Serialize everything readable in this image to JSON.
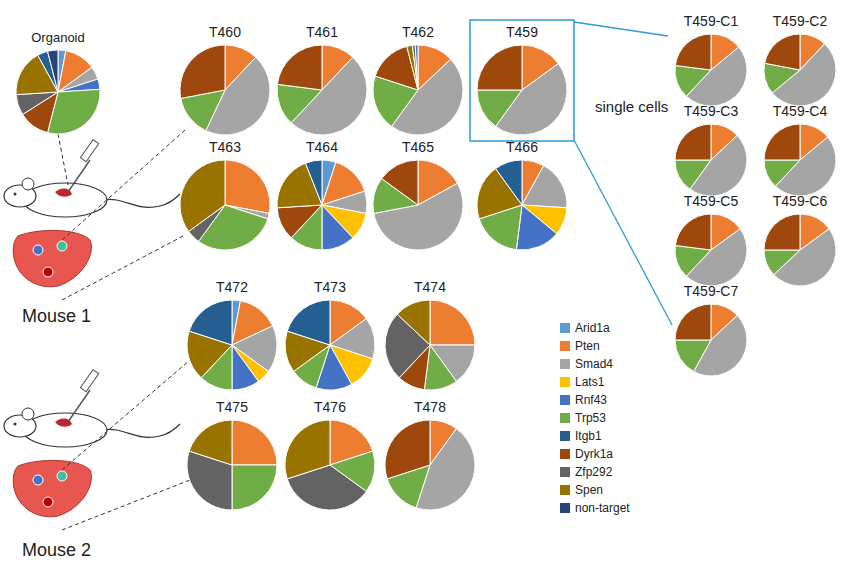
{
  "labels": {
    "single_cells": "single cells",
    "mouse_1": "Mouse 1",
    "mouse_2": "Mouse 2"
  },
  "legend_entries": [
    {
      "name": "Arid1a",
      "color": "#5b9bd5"
    },
    {
      "name": "Pten",
      "color": "#ed7d31"
    },
    {
      "name": "Smad4",
      "color": "#a5a5a5"
    },
    {
      "name": "Lats1",
      "color": "#ffc000"
    },
    {
      "name": "Rnf43",
      "color": "#4472c4"
    },
    {
      "name": "Trp53",
      "color": "#70ad47"
    },
    {
      "name": "Itgb1",
      "color": "#255e91"
    },
    {
      "name": "Dyrk1a",
      "color": "#9e480e"
    },
    {
      "name": "Zfp292",
      "color": "#636363"
    },
    {
      "name": "Spen",
      "color": "#997300"
    },
    {
      "name": "non-target",
      "color": "#264478"
    }
  ],
  "chart_data": [
    {
      "type": "pie",
      "title": "Organoid",
      "categories": [
        "Arid1a",
        "Pten",
        "Smad4",
        "Rnf43",
        "Trp53",
        "Dyrk1a",
        "Zfp292",
        "Spen",
        "Itgb1",
        "non-target"
      ],
      "values": [
        3,
        12,
        5,
        4,
        30,
        12,
        8,
        18,
        4,
        4
      ]
    },
    {
      "type": "pie",
      "title": "T460",
      "categories": [
        "Pten",
        "Smad4",
        "Trp53",
        "Dyrk1a"
      ],
      "values": [
        12,
        45,
        15,
        28
      ]
    },
    {
      "type": "pie",
      "title": "T461",
      "categories": [
        "Pten",
        "Smad4",
        "Trp53",
        "Dyrk1a"
      ],
      "values": [
        12,
        50,
        15,
        23
      ]
    },
    {
      "type": "pie",
      "title": "T462",
      "categories": [
        "Pten",
        "Smad4",
        "Trp53",
        "Dyrk1a",
        "Spen",
        "Zfp292",
        "Rnf43"
      ],
      "values": [
        13,
        47,
        20,
        16,
        2,
        1,
        1
      ]
    },
    {
      "type": "pie",
      "title": "T459",
      "categories": [
        "Pten",
        "Smad4",
        "Trp53",
        "Dyrk1a"
      ],
      "values": [
        15,
        45,
        15,
        25
      ]
    },
    {
      "type": "pie",
      "title": "T463",
      "categories": [
        "Pten",
        "Smad4",
        "Trp53",
        "Zfp292",
        "Spen"
      ],
      "values": [
        28,
        2,
        30,
        5,
        35
      ]
    },
    {
      "type": "pie",
      "title": "T464",
      "categories": [
        "Arid1a",
        "Pten",
        "Smad4",
        "Lats1",
        "Rnf43",
        "Trp53",
        "Dyrk1a",
        "Spen",
        "Itgb1"
      ],
      "values": [
        5,
        15,
        8,
        10,
        12,
        12,
        12,
        20,
        6
      ]
    },
    {
      "type": "pie",
      "title": "T465",
      "categories": [
        "Pten",
        "Smad4",
        "Trp53",
        "Dyrk1a"
      ],
      "values": [
        17,
        55,
        13,
        15
      ]
    },
    {
      "type": "pie",
      "title": "T466",
      "categories": [
        "Pten",
        "Smad4",
        "Lats1",
        "Rnf43",
        "Trp53",
        "Spen",
        "Itgb1"
      ],
      "values": [
        8,
        18,
        10,
        16,
        18,
        20,
        10
      ]
    },
    {
      "type": "pie",
      "title": "T459-C1",
      "categories": [
        "Pten",
        "Smad4",
        "Trp53",
        "Dyrk1a"
      ],
      "values": [
        14,
        48,
        15,
        23
      ]
    },
    {
      "type": "pie",
      "title": "T459-C2",
      "categories": [
        "Pten",
        "Smad4",
        "Trp53",
        "Dyrk1a"
      ],
      "values": [
        12,
        52,
        14,
        22
      ]
    },
    {
      "type": "pie",
      "title": "T459-C3",
      "categories": [
        "Pten",
        "Smad4",
        "Trp53",
        "Dyrk1a"
      ],
      "values": [
        13,
        47,
        15,
        25
      ]
    },
    {
      "type": "pie",
      "title": "T459-C4",
      "categories": [
        "Pten",
        "Smad4",
        "Trp53",
        "Dyrk1a"
      ],
      "values": [
        14,
        48,
        13,
        25
      ]
    },
    {
      "type": "pie",
      "title": "T459-C5",
      "categories": [
        "Pten",
        "Smad4",
        "Trp53",
        "Dyrk1a"
      ],
      "values": [
        15,
        47,
        15,
        23
      ]
    },
    {
      "type": "pie",
      "title": "T459-C6",
      "categories": [
        "Pten",
        "Smad4",
        "Trp53",
        "Dyrk1a"
      ],
      "values": [
        15,
        48,
        12,
        25
      ]
    },
    {
      "type": "pie",
      "title": "T459-C7",
      "categories": [
        "Pten",
        "Smad4",
        "Trp53",
        "Dyrk1a"
      ],
      "values": [
        13,
        45,
        17,
        25
      ]
    },
    {
      "type": "pie",
      "title": "T472",
      "categories": [
        "Arid1a",
        "Pten",
        "Smad4",
        "Lats1",
        "Rnf43",
        "Trp53",
        "Spen",
        "Itgb1"
      ],
      "values": [
        3,
        15,
        17,
        5,
        10,
        12,
        18,
        20
      ]
    },
    {
      "type": "pie",
      "title": "T473",
      "categories": [
        "Pten",
        "Smad4",
        "Lats1",
        "Rnf43",
        "Trp53",
        "Spen",
        "Itgb1"
      ],
      "values": [
        15,
        15,
        12,
        13,
        10,
        15,
        20
      ]
    },
    {
      "type": "pie",
      "title": "T474",
      "categories": [
        "Pten",
        "Smad4",
        "Trp53",
        "Dyrk1a",
        "Zfp292",
        "Spen"
      ],
      "values": [
        25,
        15,
        12,
        10,
        25,
        13
      ]
    },
    {
      "type": "pie",
      "title": "T475",
      "categories": [
        "Pten",
        "Trp53",
        "Zfp292",
        "Spen"
      ],
      "values": [
        25,
        25,
        30,
        20
      ]
    },
    {
      "type": "pie",
      "title": "T476",
      "categories": [
        "Pten",
        "Trp53",
        "Zfp292",
        "Spen"
      ],
      "values": [
        20,
        15,
        35,
        30
      ]
    },
    {
      "type": "pie",
      "title": "T478",
      "categories": [
        "Pten",
        "Smad4",
        "Trp53",
        "Dyrk1a"
      ],
      "values": [
        10,
        45,
        15,
        30
      ]
    }
  ]
}
